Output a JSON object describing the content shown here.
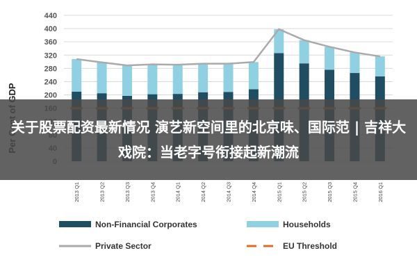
{
  "chart_data": {
    "type": "bar",
    "ylabel": "Per Cent of GDP",
    "ylim": [
      0,
      440
    ],
    "yticks": [
      0,
      40,
      80,
      120,
      160,
      200,
      240,
      280,
      320,
      360,
      400,
      440
    ],
    "categories": [
      "2013 Q1",
      "2013 Q2",
      "2013 Q3",
      "2013 Q4",
      "2014 Q1",
      "2014 Q2",
      "2014 Q3",
      "2014 Q4",
      "2015 Q1",
      "2015 Q2",
      "2015 Q3",
      "2015 Q4",
      "2016 Q1"
    ],
    "series": [
      {
        "name": "Non-Financial Corporates",
        "kind": "bar-stack",
        "color": "#1f4e63",
        "values": [
          210,
          205,
          197,
          202,
          203,
          208,
          209,
          217,
          326,
          295,
          276,
          266,
          256
        ]
      },
      {
        "name": "Households",
        "kind": "bar-stack",
        "color": "#8fd1e2",
        "values": [
          98,
          93,
          92,
          90,
          88,
          86,
          85,
          82,
          72,
          70,
          69,
          62,
          60
        ]
      },
      {
        "name": "Private Sector",
        "kind": "line",
        "color": "#aaaaaa",
        "values": [
          308,
          298,
          289,
          292,
          291,
          294,
          294,
          299,
          398,
          365,
          345,
          328,
          316
        ]
      },
      {
        "name": "EU Threshold",
        "kind": "dashed-line",
        "color": "#e06a20",
        "values": [
          160,
          160,
          160,
          160,
          160,
          160,
          160,
          160,
          160,
          160,
          160,
          160,
          160
        ]
      }
    ],
    "grid": true,
    "legend_position": "bottom"
  },
  "overlay": {
    "headline": "关于股票配资最新情况 演艺新空间里的北京味、国际范 | 吉祥大戏院：当老字号衔接起新潮流"
  }
}
